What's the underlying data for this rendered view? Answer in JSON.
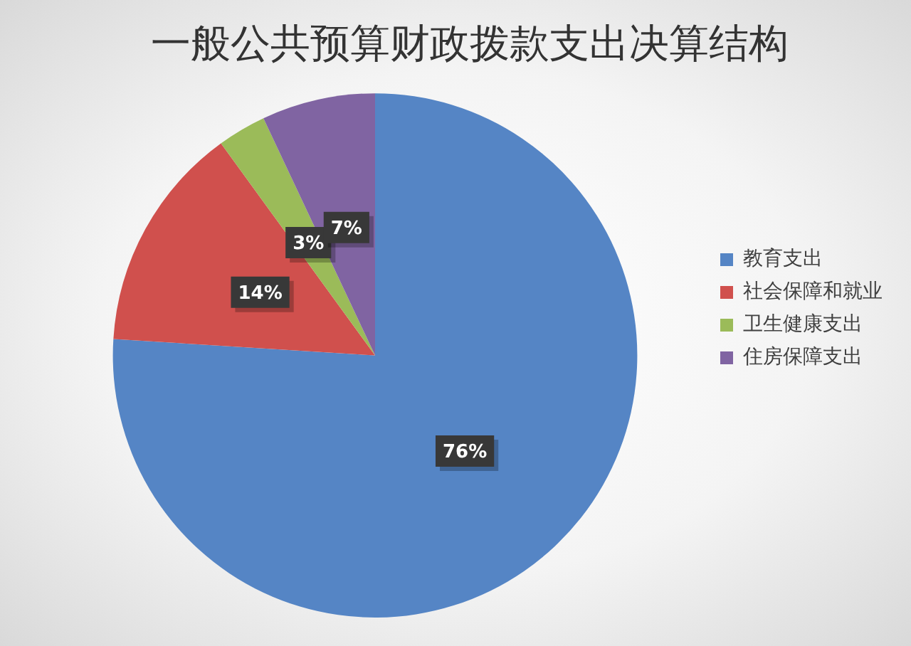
{
  "chart_data": {
    "type": "pie",
    "title": "一般公共预算财政拨款支出决算结构",
    "categories": [
      "教育支出",
      "社会保障和就业",
      "卫生健康支出",
      "住房保障支出"
    ],
    "values": [
      76,
      14,
      3,
      7
    ],
    "colors": [
      "#5585c5",
      "#d0504d",
      "#9bbb59",
      "#8064a2"
    ],
    "value_labels": [
      "76%",
      "14%",
      "3%",
      "7%"
    ],
    "legend": "right"
  }
}
